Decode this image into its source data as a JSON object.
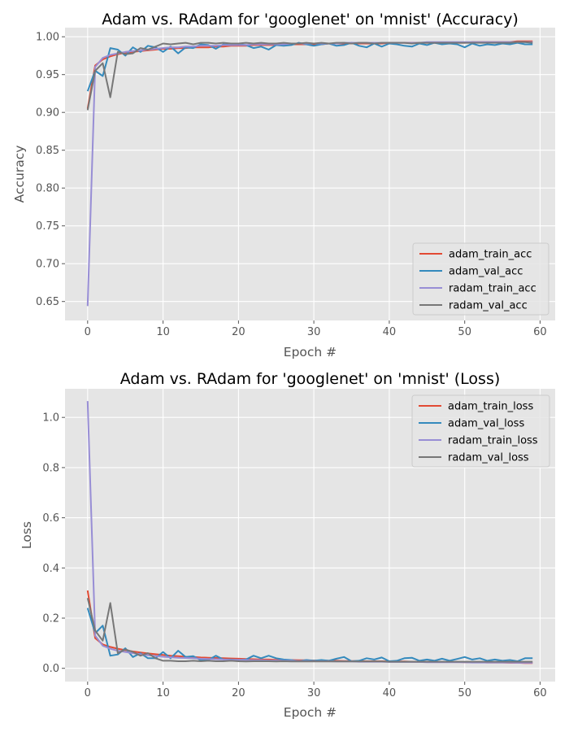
{
  "chart_data": [
    {
      "type": "line",
      "title": "Adam vs. RAdam for 'googlenet' on 'mnist' (Accuracy)",
      "xlabel": "Epoch #",
      "ylabel": "Accuracy",
      "xlim": [
        -3,
        62
      ],
      "ylim": [
        0.625,
        1.012
      ],
      "xticks": [
        0,
        10,
        20,
        30,
        40,
        50,
        60
      ],
      "yticks": [
        0.65,
        0.7,
        0.75,
        0.8,
        0.85,
        0.9,
        0.95,
        1.0
      ],
      "ytick_decimals": 2,
      "grid": true,
      "legend_position": "lower-right",
      "x": [
        0,
        1,
        2,
        3,
        4,
        5,
        6,
        7,
        8,
        9,
        10,
        11,
        12,
        13,
        14,
        15,
        16,
        17,
        18,
        19,
        20,
        21,
        22,
        23,
        24,
        25,
        26,
        27,
        28,
        29,
        30,
        31,
        32,
        33,
        34,
        35,
        36,
        37,
        38,
        39,
        40,
        41,
        42,
        43,
        44,
        45,
        46,
        47,
        48,
        49,
        50,
        51,
        52,
        53,
        54,
        55,
        56,
        57,
        58,
        59
      ],
      "series": [
        {
          "name": "adam_train_acc",
          "color": "#e24a33",
          "values": [
            0.905,
            0.962,
            0.97,
            0.974,
            0.977,
            0.979,
            0.98,
            0.981,
            0.982,
            0.983,
            0.984,
            0.984,
            0.985,
            0.985,
            0.986,
            0.986,
            0.986,
            0.987,
            0.987,
            0.988,
            0.988,
            0.988,
            0.989,
            0.989,
            0.989,
            0.989,
            0.99,
            0.99,
            0.99,
            0.99,
            0.99,
            0.99,
            0.991,
            0.991,
            0.991,
            0.991,
            0.991,
            0.991,
            0.991,
            0.991,
            0.992,
            0.992,
            0.992,
            0.992,
            0.992,
            0.992,
            0.992,
            0.992,
            0.992,
            0.992,
            0.992,
            0.993,
            0.993,
            0.993,
            0.993,
            0.993,
            0.993,
            0.994,
            0.994,
            0.994
          ]
        },
        {
          "name": "adam_val_acc",
          "color": "#348abd",
          "values": [
            0.928,
            0.955,
            0.948,
            0.985,
            0.983,
            0.975,
            0.986,
            0.98,
            0.988,
            0.986,
            0.98,
            0.987,
            0.978,
            0.986,
            0.985,
            0.99,
            0.989,
            0.984,
            0.99,
            0.989,
            0.99,
            0.989,
            0.985,
            0.987,
            0.983,
            0.989,
            0.988,
            0.989,
            0.992,
            0.99,
            0.988,
            0.99,
            0.991,
            0.988,
            0.989,
            0.992,
            0.988,
            0.986,
            0.991,
            0.987,
            0.991,
            0.99,
            0.988,
            0.987,
            0.991,
            0.989,
            0.992,
            0.99,
            0.991,
            0.99,
            0.986,
            0.991,
            0.988,
            0.99,
            0.989,
            0.991,
            0.99,
            0.992,
            0.99,
            0.99
          ]
        },
        {
          "name": "radam_train_acc",
          "color": "#988ed5",
          "values": [
            0.644,
            0.96,
            0.972,
            0.976,
            0.978,
            0.98,
            0.981,
            0.982,
            0.983,
            0.984,
            0.985,
            0.986,
            0.986,
            0.987,
            0.987,
            0.988,
            0.988,
            0.988,
            0.989,
            0.989,
            0.989,
            0.989,
            0.99,
            0.99,
            0.99,
            0.99,
            0.99,
            0.991,
            0.991,
            0.991,
            0.991,
            0.991,
            0.991,
            0.991,
            0.992,
            0.992,
            0.992,
            0.992,
            0.992,
            0.992,
            0.992,
            0.992,
            0.992,
            0.992,
            0.992,
            0.993,
            0.993,
            0.993,
            0.993,
            0.993,
            0.993,
            0.993,
            0.993,
            0.993,
            0.993,
            0.993,
            0.993,
            0.993,
            0.993,
            0.993
          ]
        },
        {
          "name": "radam_val_acc",
          "color": "#777777",
          "values": [
            0.903,
            0.955,
            0.965,
            0.92,
            0.98,
            0.977,
            0.978,
            0.985,
            0.983,
            0.987,
            0.991,
            0.99,
            0.991,
            0.992,
            0.99,
            0.992,
            0.992,
            0.991,
            0.992,
            0.991,
            0.991,
            0.992,
            0.991,
            0.992,
            0.991,
            0.991,
            0.992,
            0.991,
            0.991,
            0.992,
            0.991,
            0.992,
            0.991,
            0.992,
            0.992,
            0.991,
            0.992,
            0.992,
            0.991,
            0.992,
            0.992,
            0.992,
            0.992,
            0.991,
            0.992,
            0.992,
            0.992,
            0.992,
            0.992,
            0.992,
            0.992,
            0.992,
            0.992,
            0.992,
            0.992,
            0.992,
            0.992,
            0.993,
            0.993,
            0.992
          ]
        }
      ]
    },
    {
      "type": "line",
      "title": "Adam vs. RAdam for 'googlenet' on 'mnist' (Loss)",
      "xlabel": "Epoch #",
      "ylabel": "Loss",
      "xlim": [
        -3,
        62
      ],
      "ylim": [
        -0.053,
        1.114
      ],
      "xticks": [
        0,
        10,
        20,
        30,
        40,
        50,
        60
      ],
      "yticks": [
        0.0,
        0.2,
        0.4,
        0.6,
        0.8,
        1.0
      ],
      "ytick_decimals": 1,
      "grid": true,
      "legend_position": "upper-right",
      "x": [
        0,
        1,
        2,
        3,
        4,
        5,
        6,
        7,
        8,
        9,
        10,
        11,
        12,
        13,
        14,
        15,
        16,
        17,
        18,
        19,
        20,
        21,
        22,
        23,
        24,
        25,
        26,
        27,
        28,
        29,
        30,
        31,
        32,
        33,
        34,
        35,
        36,
        37,
        38,
        39,
        40,
        41,
        42,
        43,
        44,
        45,
        46,
        47,
        48,
        49,
        50,
        51,
        52,
        53,
        54,
        55,
        56,
        57,
        58,
        59
      ],
      "series": [
        {
          "name": "adam_train_loss",
          "color": "#e24a33",
          "values": [
            0.31,
            0.12,
            0.095,
            0.085,
            0.078,
            0.072,
            0.067,
            0.063,
            0.059,
            0.056,
            0.053,
            0.05,
            0.048,
            0.046,
            0.045,
            0.043,
            0.042,
            0.041,
            0.04,
            0.039,
            0.038,
            0.037,
            0.036,
            0.035,
            0.035,
            0.034,
            0.033,
            0.033,
            0.032,
            0.032,
            0.031,
            0.031,
            0.03,
            0.03,
            0.029,
            0.029,
            0.029,
            0.028,
            0.028,
            0.028,
            0.027,
            0.027,
            0.027,
            0.026,
            0.026,
            0.026,
            0.025,
            0.025,
            0.025,
            0.025,
            0.024,
            0.024,
            0.024,
            0.023,
            0.023,
            0.023,
            0.022,
            0.022,
            0.021,
            0.021
          ]
        },
        {
          "name": "adam_val_loss",
          "color": "#348abd",
          "values": [
            0.24,
            0.14,
            0.17,
            0.05,
            0.055,
            0.08,
            0.045,
            0.06,
            0.04,
            0.04,
            0.065,
            0.04,
            0.07,
            0.045,
            0.048,
            0.032,
            0.033,
            0.05,
            0.035,
            0.035,
            0.033,
            0.035,
            0.05,
            0.04,
            0.05,
            0.04,
            0.035,
            0.033,
            0.028,
            0.033,
            0.03,
            0.033,
            0.03,
            0.038,
            0.045,
            0.028,
            0.03,
            0.04,
            0.035,
            0.043,
            0.028,
            0.03,
            0.04,
            0.042,
            0.03,
            0.035,
            0.03,
            0.038,
            0.03,
            0.037,
            0.045,
            0.035,
            0.04,
            0.03,
            0.035,
            0.03,
            0.033,
            0.028,
            0.04,
            0.04
          ]
        },
        {
          "name": "radam_train_loss",
          "color": "#988ed5",
          "values": [
            1.065,
            0.13,
            0.09,
            0.078,
            0.07,
            0.065,
            0.06,
            0.056,
            0.052,
            0.049,
            0.046,
            0.044,
            0.042,
            0.041,
            0.04,
            0.038,
            0.037,
            0.036,
            0.035,
            0.034,
            0.034,
            0.033,
            0.032,
            0.032,
            0.031,
            0.031,
            0.03,
            0.03,
            0.029,
            0.029,
            0.028,
            0.028,
            0.028,
            0.027,
            0.027,
            0.027,
            0.026,
            0.026,
            0.026,
            0.026,
            0.025,
            0.025,
            0.025,
            0.025,
            0.025,
            0.024,
            0.024,
            0.024,
            0.024,
            0.024,
            0.024,
            0.023,
            0.023,
            0.023,
            0.023,
            0.023,
            0.023,
            0.022,
            0.022,
            0.022
          ]
        },
        {
          "name": "radam_val_loss",
          "color": "#777777",
          "values": [
            0.28,
            0.15,
            0.11,
            0.26,
            0.06,
            0.075,
            0.065,
            0.05,
            0.06,
            0.04,
            0.03,
            0.03,
            0.028,
            0.028,
            0.03,
            0.028,
            0.03,
            0.028,
            0.028,
            0.03,
            0.028,
            0.027,
            0.028,
            0.028,
            0.028,
            0.027,
            0.028,
            0.027,
            0.027,
            0.027,
            0.027,
            0.027,
            0.027,
            0.027,
            0.027,
            0.027,
            0.027,
            0.027,
            0.027,
            0.027,
            0.026,
            0.026,
            0.026,
            0.026,
            0.026,
            0.026,
            0.026,
            0.026,
            0.026,
            0.026,
            0.026,
            0.026,
            0.026,
            0.026,
            0.026,
            0.026,
            0.026,
            0.026,
            0.026,
            0.026
          ]
        }
      ]
    }
  ]
}
